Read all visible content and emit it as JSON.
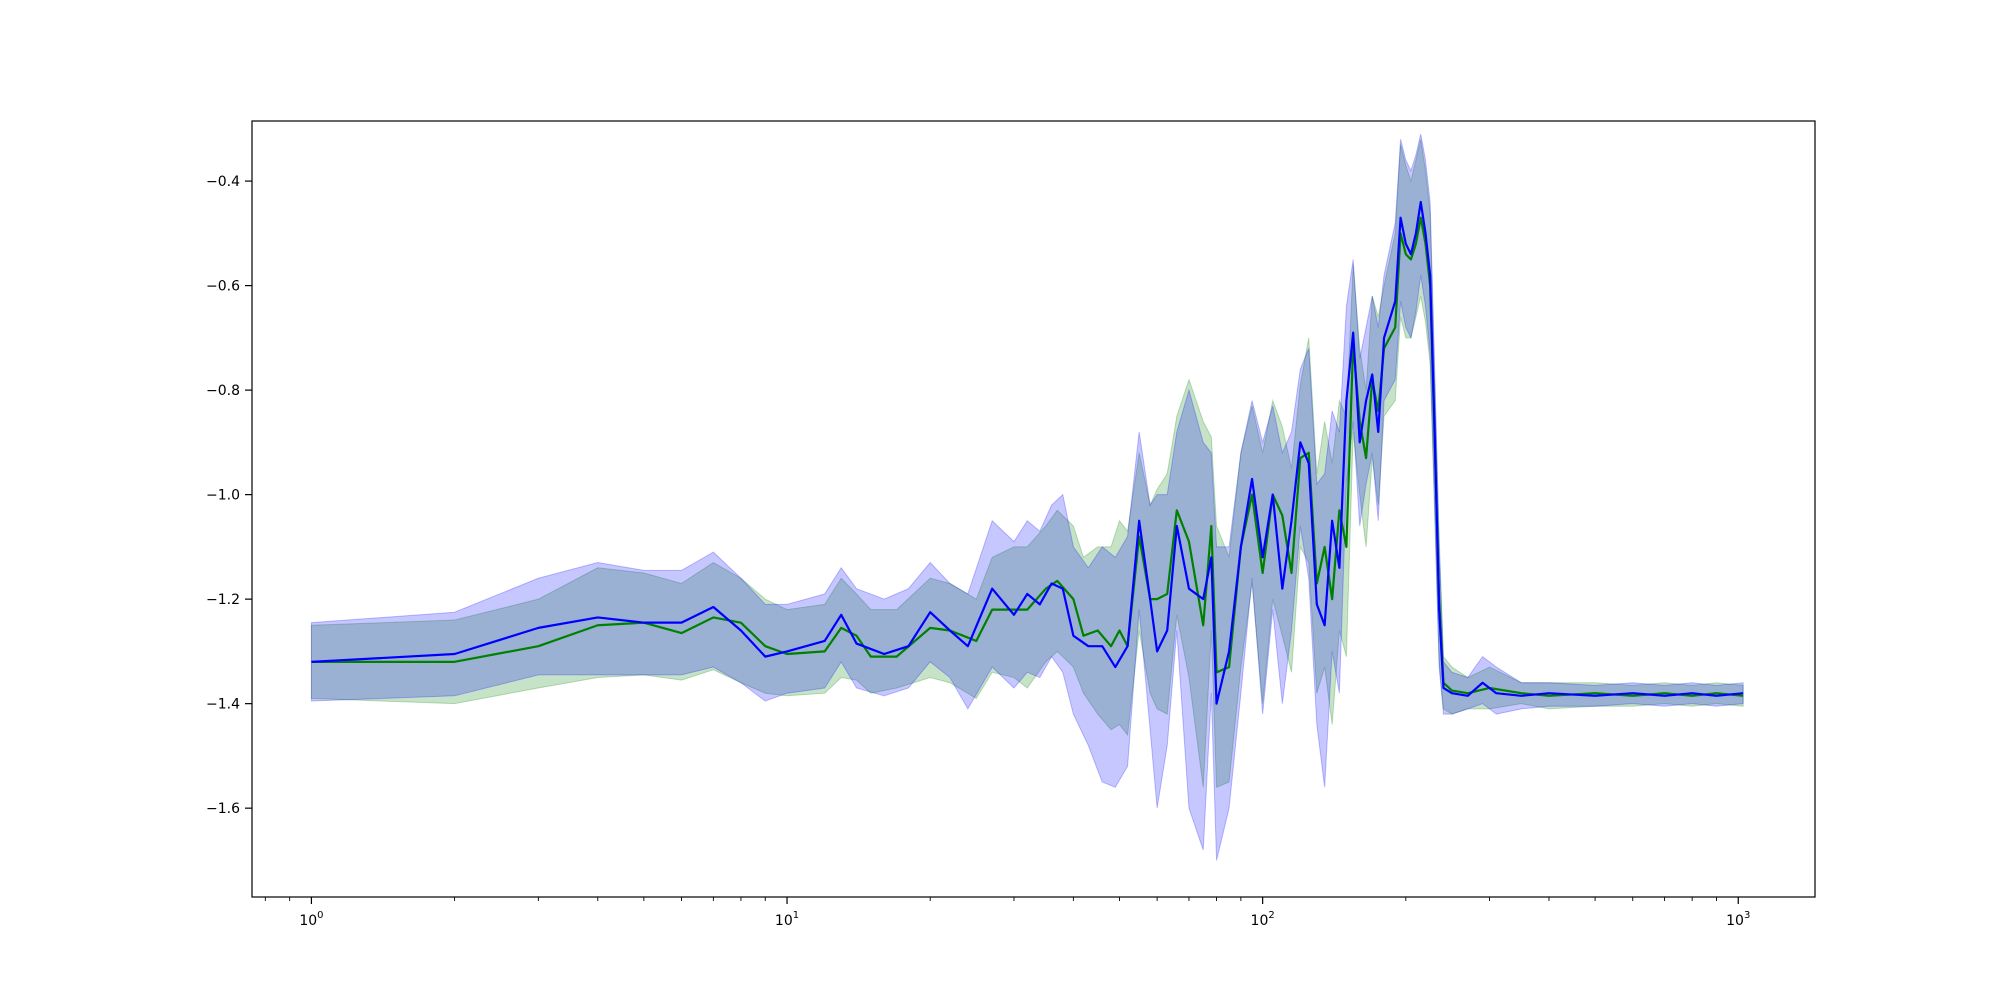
{
  "chart_data": {
    "type": "line",
    "title": "",
    "xlabel": "",
    "ylabel": "",
    "xscale": "log",
    "xlim": [
      0.75,
      1450
    ],
    "ylim": [
      -1.77,
      -0.285
    ],
    "grid": false,
    "legend": "none",
    "x_ticks": [
      {
        "base": "10",
        "exp": "0",
        "value": 1
      },
      {
        "base": "10",
        "exp": "1",
        "value": 10
      },
      {
        "base": "10",
        "exp": "2",
        "value": 100
      },
      {
        "base": "10",
        "exp": "3",
        "value": 1000
      }
    ],
    "y_ticks": [
      {
        "label": "−0.4",
        "value": -0.4
      },
      {
        "label": "−0.6",
        "value": -0.6
      },
      {
        "label": "−0.8",
        "value": -0.8
      },
      {
        "label": "−1.0",
        "value": -1.0
      },
      {
        "label": "−1.2",
        "value": -1.2
      },
      {
        "label": "−1.4",
        "value": -1.4
      },
      {
        "label": "−1.6",
        "value": -1.6
      }
    ],
    "series": [
      {
        "color": "#008000",
        "band_color": "#008000",
        "band_opacity": 0.22,
        "points": [
          [
            1,
            -1.32,
            -1.25,
            -1.39
          ],
          [
            2,
            -1.32,
            -1.24,
            -1.4
          ],
          [
            3,
            -1.29,
            -1.2,
            -1.37
          ],
          [
            4,
            -1.25,
            -1.14,
            -1.35
          ],
          [
            5,
            -1.245,
            -1.15,
            -1.345
          ],
          [
            6,
            -1.265,
            -1.17,
            -1.355
          ],
          [
            7,
            -1.235,
            -1.13,
            -1.335
          ],
          [
            8,
            -1.245,
            -1.16,
            -1.36
          ],
          [
            9,
            -1.29,
            -1.2,
            -1.38
          ],
          [
            10,
            -1.305,
            -1.22,
            -1.385
          ],
          [
            12,
            -1.3,
            -1.21,
            -1.38
          ],
          [
            13,
            -1.255,
            -1.16,
            -1.35
          ],
          [
            14,
            -1.27,
            -1.19,
            -1.355
          ],
          [
            15,
            -1.31,
            -1.22,
            -1.38
          ],
          [
            17,
            -1.31,
            -1.22,
            -1.37
          ],
          [
            20,
            -1.255,
            -1.16,
            -1.35
          ],
          [
            22,
            -1.26,
            -1.17,
            -1.36
          ],
          [
            25,
            -1.28,
            -1.2,
            -1.39
          ],
          [
            27,
            -1.22,
            -1.12,
            -1.34
          ],
          [
            30,
            -1.22,
            -1.1,
            -1.35
          ],
          [
            32,
            -1.22,
            -1.1,
            -1.37
          ],
          [
            35,
            -1.18,
            -1.06,
            -1.32
          ],
          [
            37,
            -1.165,
            -1.03,
            -1.3
          ],
          [
            40,
            -1.2,
            -1.06,
            -1.33
          ],
          [
            42,
            -1.27,
            -1.12,
            -1.38
          ],
          [
            45,
            -1.26,
            -1.1,
            -1.42
          ],
          [
            48,
            -1.29,
            -1.1,
            -1.45
          ],
          [
            50,
            -1.26,
            -1.05,
            -1.44
          ],
          [
            52,
            -1.29,
            -1.07,
            -1.46
          ],
          [
            55,
            -1.08,
            -0.92,
            -1.26
          ],
          [
            58,
            -1.2,
            -1.02,
            -1.38
          ],
          [
            60,
            -1.2,
            -0.99,
            -1.41
          ],
          [
            63,
            -1.19,
            -0.96,
            -1.42
          ],
          [
            66,
            -1.03,
            -0.85,
            -1.23
          ],
          [
            70,
            -1.09,
            -0.78,
            -1.35
          ],
          [
            75,
            -1.25,
            -0.86,
            -1.56
          ],
          [
            78,
            -1.06,
            -0.89,
            -1.26
          ],
          [
            80,
            -1.34,
            -1.06,
            -1.56
          ],
          [
            85,
            -1.33,
            -1.12,
            -1.55
          ],
          [
            90,
            -1.1,
            -0.92,
            -1.33
          ],
          [
            95,
            -1.0,
            -0.83,
            -1.17
          ],
          [
            100,
            -1.15,
            -0.92,
            -1.4
          ],
          [
            105,
            -1.0,
            -0.82,
            -1.2
          ],
          [
            110,
            -1.04,
            -0.87,
            -1.27
          ],
          [
            115,
            -1.15,
            -0.95,
            -1.34
          ],
          [
            120,
            -0.93,
            -0.79,
            -1.1
          ],
          [
            125,
            -0.92,
            -0.7,
            -1.13
          ],
          [
            130,
            -1.17,
            -0.96,
            -1.38
          ],
          [
            135,
            -1.1,
            -0.86,
            -1.33
          ],
          [
            140,
            -1.2,
            -0.94,
            -1.44
          ],
          [
            145,
            -1.03,
            -0.82,
            -1.26
          ],
          [
            150,
            -1.1,
            -0.85,
            -1.31
          ],
          [
            155,
            -0.71,
            -0.56,
            -0.88
          ],
          [
            160,
            -0.86,
            -0.72,
            -1.0
          ],
          [
            165,
            -0.93,
            -0.8,
            -1.1
          ],
          [
            170,
            -0.78,
            -0.62,
            -0.93
          ],
          [
            175,
            -0.84,
            -0.66,
            -1.02
          ],
          [
            180,
            -0.72,
            -0.6,
            -0.85
          ],
          [
            190,
            -0.68,
            -0.5,
            -0.82
          ],
          [
            195,
            -0.5,
            -0.33,
            -0.66
          ],
          [
            200,
            -0.54,
            -0.37,
            -0.7
          ],
          [
            205,
            -0.55,
            -0.4,
            -0.7
          ],
          [
            210,
            -0.52,
            -0.36,
            -0.66
          ],
          [
            215,
            -0.47,
            -0.32,
            -0.62
          ],
          [
            220,
            -0.52,
            -0.38,
            -0.67
          ],
          [
            225,
            -0.6,
            -0.46,
            -0.75
          ],
          [
            230,
            -0.9,
            -0.78,
            -1.04
          ],
          [
            235,
            -1.2,
            -1.08,
            -1.32
          ],
          [
            240,
            -1.36,
            -1.31,
            -1.41
          ],
          [
            250,
            -1.375,
            -1.33,
            -1.42
          ],
          [
            270,
            -1.38,
            -1.35,
            -1.41
          ],
          [
            300,
            -1.37,
            -1.33,
            -1.41
          ],
          [
            350,
            -1.38,
            -1.36,
            -1.4
          ],
          [
            400,
            -1.385,
            -1.36,
            -1.41
          ],
          [
            500,
            -1.38,
            -1.36,
            -1.405
          ],
          [
            600,
            -1.385,
            -1.365,
            -1.405
          ],
          [
            700,
            -1.38,
            -1.36,
            -1.4
          ],
          [
            800,
            -1.385,
            -1.365,
            -1.405
          ],
          [
            900,
            -1.38,
            -1.36,
            -1.4
          ],
          [
            1024,
            -1.385,
            -1.365,
            -1.405
          ]
        ]
      },
      {
        "color": "#0000ff",
        "band_color": "#0000ff",
        "band_opacity": 0.22,
        "points": [
          [
            1,
            -1.32,
            -1.245,
            -1.395
          ],
          [
            2,
            -1.305,
            -1.225,
            -1.385
          ],
          [
            3,
            -1.255,
            -1.16,
            -1.345
          ],
          [
            4,
            -1.235,
            -1.13,
            -1.345
          ],
          [
            5,
            -1.245,
            -1.145,
            -1.345
          ],
          [
            6,
            -1.245,
            -1.145,
            -1.345
          ],
          [
            7,
            -1.215,
            -1.11,
            -1.33
          ],
          [
            8,
            -1.26,
            -1.16,
            -1.36
          ],
          [
            9,
            -1.31,
            -1.21,
            -1.395
          ],
          [
            10,
            -1.3,
            -1.21,
            -1.38
          ],
          [
            12,
            -1.28,
            -1.19,
            -1.37
          ],
          [
            13,
            -1.23,
            -1.14,
            -1.32
          ],
          [
            14,
            -1.285,
            -1.18,
            -1.37
          ],
          [
            16,
            -1.305,
            -1.2,
            -1.385
          ],
          [
            18,
            -1.29,
            -1.18,
            -1.37
          ],
          [
            20,
            -1.225,
            -1.13,
            -1.32
          ],
          [
            22,
            -1.26,
            -1.17,
            -1.35
          ],
          [
            24,
            -1.29,
            -1.19,
            -1.41
          ],
          [
            27,
            -1.18,
            -1.05,
            -1.33
          ],
          [
            30,
            -1.23,
            -1.09,
            -1.37
          ],
          [
            32,
            -1.19,
            -1.05,
            -1.34
          ],
          [
            34,
            -1.21,
            -1.07,
            -1.35
          ],
          [
            36,
            -1.17,
            -1.02,
            -1.31
          ],
          [
            38,
            -1.18,
            -1.0,
            -1.34
          ],
          [
            40,
            -1.27,
            -1.1,
            -1.42
          ],
          [
            43,
            -1.29,
            -1.14,
            -1.48
          ],
          [
            46,
            -1.29,
            -1.1,
            -1.55
          ],
          [
            49,
            -1.33,
            -1.12,
            -1.56
          ],
          [
            52,
            -1.29,
            -1.08,
            -1.52
          ],
          [
            55,
            -1.05,
            -0.88,
            -1.22
          ],
          [
            58,
            -1.2,
            -1.02,
            -1.45
          ],
          [
            60,
            -1.3,
            -1.0,
            -1.6
          ],
          [
            63,
            -1.26,
            -1.0,
            -1.48
          ],
          [
            66,
            -1.06,
            -0.88,
            -1.26
          ],
          [
            70,
            -1.18,
            -0.8,
            -1.6
          ],
          [
            75,
            -1.2,
            -0.9,
            -1.68
          ],
          [
            78,
            -1.12,
            -0.92,
            -1.38
          ],
          [
            80,
            -1.4,
            -1.1,
            -1.7
          ],
          [
            85,
            -1.3,
            -1.1,
            -1.6
          ],
          [
            90,
            -1.1,
            -0.92,
            -1.38
          ],
          [
            95,
            -0.97,
            -0.82,
            -1.16
          ],
          [
            100,
            -1.12,
            -0.9,
            -1.42
          ],
          [
            105,
            -1.0,
            -0.83,
            -1.22
          ],
          [
            110,
            -1.18,
            -0.92,
            -1.4
          ],
          [
            115,
            -1.05,
            -0.88,
            -1.26
          ],
          [
            120,
            -0.9,
            -0.76,
            -1.06
          ],
          [
            125,
            -0.94,
            -0.72,
            -1.16
          ],
          [
            130,
            -1.21,
            -0.98,
            -1.44
          ],
          [
            135,
            -1.25,
            -0.96,
            -1.56
          ],
          [
            140,
            -1.05,
            -0.84,
            -1.3
          ],
          [
            145,
            -1.14,
            -0.88,
            -1.38
          ],
          [
            150,
            -0.82,
            -0.64,
            -0.98
          ],
          [
            155,
            -0.69,
            -0.55,
            -0.86
          ],
          [
            160,
            -0.9,
            -0.74,
            -1.06
          ],
          [
            165,
            -0.82,
            -0.68,
            -0.98
          ],
          [
            170,
            -0.77,
            -0.62,
            -0.92
          ],
          [
            175,
            -0.88,
            -0.68,
            -1.05
          ],
          [
            180,
            -0.7,
            -0.58,
            -0.82
          ],
          [
            190,
            -0.63,
            -0.48,
            -0.78
          ],
          [
            195,
            -0.47,
            -0.32,
            -0.63
          ],
          [
            200,
            -0.52,
            -0.36,
            -0.68
          ],
          [
            205,
            -0.54,
            -0.38,
            -0.7
          ],
          [
            210,
            -0.5,
            -0.35,
            -0.65
          ],
          [
            215,
            -0.44,
            -0.31,
            -0.58
          ],
          [
            220,
            -0.5,
            -0.36,
            -0.64
          ],
          [
            225,
            -0.58,
            -0.44,
            -0.73
          ],
          [
            230,
            -0.88,
            -0.76,
            -1.02
          ],
          [
            235,
            -1.22,
            -1.1,
            -1.33
          ],
          [
            240,
            -1.37,
            -1.32,
            -1.42
          ],
          [
            250,
            -1.38,
            -1.34,
            -1.42
          ],
          [
            270,
            -1.385,
            -1.35,
            -1.41
          ],
          [
            290,
            -1.36,
            -1.31,
            -1.4
          ],
          [
            310,
            -1.38,
            -1.33,
            -1.42
          ],
          [
            350,
            -1.385,
            -1.36,
            -1.41
          ],
          [
            400,
            -1.38,
            -1.36,
            -1.405
          ],
          [
            500,
            -1.385,
            -1.365,
            -1.405
          ],
          [
            600,
            -1.38,
            -1.36,
            -1.4
          ],
          [
            700,
            -1.385,
            -1.365,
            -1.405
          ],
          [
            800,
            -1.38,
            -1.36,
            -1.4
          ],
          [
            900,
            -1.385,
            -1.365,
            -1.405
          ],
          [
            1024,
            -1.38,
            -1.36,
            -1.4
          ]
        ]
      }
    ]
  }
}
